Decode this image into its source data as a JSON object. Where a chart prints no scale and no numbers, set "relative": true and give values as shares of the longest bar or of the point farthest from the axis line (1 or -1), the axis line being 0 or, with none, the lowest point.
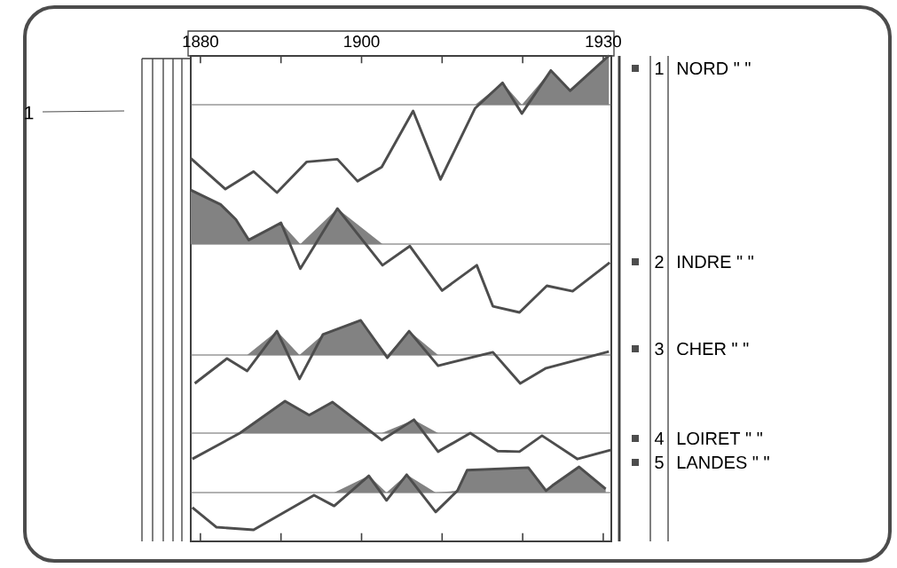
{
  "chart_data": [
    {
      "type": "line",
      "relative": true,
      "legend": "right",
      "tick_labels": "x",
      "xlim": [
        1878.8,
        1931
      ],
      "xticks": [
        1880,
        {
          "value": 1890,
          "label": null
        },
        1900,
        {
          "value": 1910,
          "label": null
        },
        {
          "value": 1920,
          "label": null
        },
        1930
      ],
      "annotations": [
        "1",
        "1"
      ],
      "x": [
        1878.8,
        1883.1,
        1886.6,
        1889.5,
        1893.2,
        1897.0,
        1899.5,
        1902.5,
        1906.4,
        1909.8,
        1914.1,
        1917.5,
        1919.9,
        1923.5,
        1925.9,
        1930.7
      ],
      "series": [
        {
          "name": "NORD \"   \"",
          "color": "#4d4d4d",
          "values": [
            -0.61,
            -0.96,
            -0.76,
            -1,
            -0.65,
            -0.62,
            -0.87,
            -0.71,
            -0.07,
            -0.85,
            -0.04,
            0.25,
            -0.1,
            0.39,
            0.16,
            0.56
          ],
          "lower": [
            0,
            0,
            0,
            0,
            0,
            0,
            0,
            0,
            0,
            0,
            0,
            0,
            0,
            0,
            0,
            0
          ],
          "upper": [
            0,
            0,
            0,
            0,
            0,
            0,
            0,
            0,
            0,
            0,
            0,
            0.25,
            0,
            0.39,
            0.16,
            0.56
          ]
        }
      ]
    },
    {
      "type": "line",
      "relative": true,
      "legend": "right",
      "tick_labels": false,
      "xlim": [
        1878.8,
        1931
      ],
      "annotations": [
        "2"
      ],
      "x": [
        1878.8,
        1882.5,
        1884.4,
        1886.0,
        1890.0,
        1892.4,
        1897.0,
        1902.6,
        1906.0,
        1910.0,
        1914.3,
        1916.3,
        1919.6,
        1923.0,
        1926.2,
        1930.8
      ],
      "series": [
        {
          "name": "INDRE \"   \"",
          "color": "#4d4d4d",
          "values": [
            0.79,
            0.58,
            0.36,
            0.06,
            0.31,
            -0.36,
            0.52,
            -0.31,
            -0.03,
            -0.68,
            -0.31,
            -0.91,
            -1,
            -0.61,
            -0.69,
            -0.27
          ],
          "lower": [
            0,
            0,
            0,
            0,
            0,
            0,
            0,
            0,
            0,
            0,
            0,
            0,
            0,
            0,
            0,
            0
          ],
          "upper": [
            0.79,
            0.58,
            0.36,
            0.06,
            0.31,
            0,
            0.52,
            0,
            0,
            0,
            0,
            0,
            0,
            0,
            0,
            0
          ]
        }
      ]
    },
    {
      "type": "line",
      "relative": true,
      "legend": "right",
      "tick_labels": false,
      "xlim": [
        1878.8,
        1931
      ],
      "annotations": [
        "3"
      ],
      "x": [
        1879.3,
        1883.3,
        1885.8,
        1889.5,
        1892.3,
        1895.2,
        1899.9,
        1903.2,
        1905.9,
        1909.5,
        1916.3,
        1919.7,
        1922.9,
        1930.7
      ],
      "series": [
        {
          "name": "CHER \"   \"",
          "color": "#4d4d4d",
          "values": [
            -0.82,
            -0.1,
            -0.46,
            0.69,
            -0.69,
            0.59,
            1,
            -0.08,
            0.69,
            -0.31,
            0.08,
            -0.82,
            -0.38,
            0.1
          ],
          "lower": [
            0,
            0,
            0,
            0,
            0,
            0,
            0,
            0,
            0,
            0,
            0,
            0,
            0,
            0
          ],
          "upper": [
            0,
            0,
            0,
            0.69,
            0,
            0.59,
            1,
            0,
            0.69,
            0,
            0,
            0,
            0,
            0
          ]
        }
      ]
    },
    {
      "type": "line",
      "relative": true,
      "legend": "right",
      "tick_labels": false,
      "xlim": [
        1878.8,
        1931
      ],
      "annotations": [
        "4"
      ],
      "x": [
        1879.0,
        1884.9,
        1890.5,
        1893.5,
        1896.4,
        1901.4,
        1902.5,
        1906.5,
        1909.5,
        1913.5,
        1916.9,
        1919.6,
        1922.4,
        1926.8,
        1930.9
      ],
      "series": [
        {
          "name": "LOIRET \"   \"",
          "color": "#4d4d4d",
          "values": [
            -0.81,
            0,
            1,
            0.56,
            0.97,
            0,
            -0.22,
            0.42,
            -0.58,
            0,
            -0.56,
            -0.58,
            -0.08,
            -0.81,
            -0.53
          ],
          "lower": [
            0,
            0,
            0,
            0,
            0,
            0,
            0,
            0,
            0,
            0,
            0,
            0,
            0,
            0,
            0
          ],
          "upper": [
            0,
            0,
            1,
            0.56,
            0.97,
            0,
            0,
            0.42,
            0,
            0,
            0,
            0,
            0,
            0,
            0
          ]
        }
      ]
    },
    {
      "type": "line",
      "relative": true,
      "legend": "right",
      "tick_labels": false,
      "xlim": [
        1878.8,
        1931
      ],
      "xticks": [
        1880,
        1890,
        1900,
        1910,
        1920,
        1930
      ],
      "annotations": [
        "5"
      ],
      "x": [
        1879.0,
        1882.0,
        1886.6,
        1894.1,
        1896.6,
        1900.9,
        1903.1,
        1905.6,
        1909.2,
        1911.9,
        1913.1,
        1920.7,
        1922.9,
        1923.7,
        1927.0,
        1930.3
      ],
      "series": [
        {
          "name": "LANDES \"   \"",
          "color": "#4d4d4d",
          "values": [
            -0.4,
            -0.93,
            -1,
            -0.07,
            -0.36,
            0.45,
            -0.21,
            0.48,
            -0.52,
            0.05,
            0.6,
            0.67,
            0.05,
            0.19,
            0.69,
            0.1
          ],
          "lower": [
            0,
            0,
            0,
            0,
            0,
            0,
            0,
            0,
            0,
            0,
            0,
            0,
            0,
            0,
            0,
            0
          ],
          "upper": [
            0,
            0,
            0,
            0,
            0,
            0.45,
            0,
            0.48,
            0,
            0.05,
            0.6,
            0.67,
            0.05,
            0.19,
            0.69,
            0.1
          ]
        }
      ]
    }
  ]
}
